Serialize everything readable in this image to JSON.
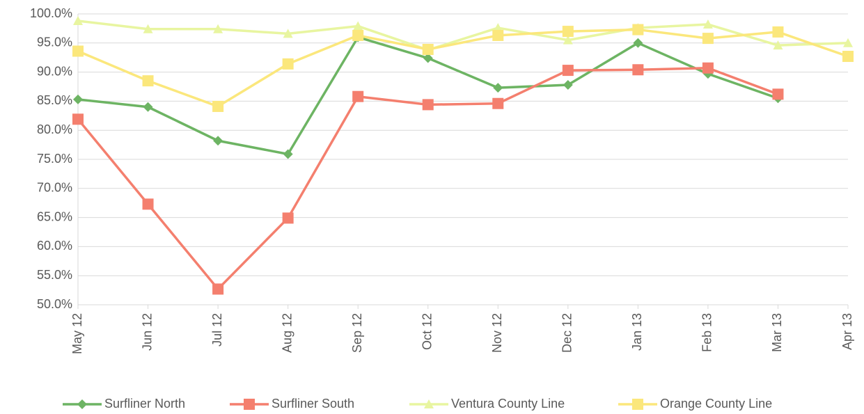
{
  "chart_data": {
    "type": "line",
    "categories": [
      "May 12",
      "Jun 12",
      "Jul 12",
      "Aug 12",
      "Sep 12",
      "Oct 12",
      "Nov 12",
      "Dec 12",
      "Jan 13",
      "Feb 13",
      "Mar 13",
      "Apr 13"
    ],
    "series": [
      {
        "name": "Surfliner North",
        "color": "#6db463",
        "marker": "diamond",
        "values": [
          85.3,
          84.0,
          78.2,
          75.9,
          96.0,
          92.4,
          87.3,
          87.8,
          95.0,
          89.7,
          85.5,
          null
        ]
      },
      {
        "name": "Surfliner South",
        "color": "#f47f6e",
        "marker": "square",
        "values": [
          81.9,
          67.3,
          52.7,
          64.9,
          85.8,
          84.4,
          84.6,
          90.3,
          90.4,
          90.7,
          86.2,
          null
        ]
      },
      {
        "name": "Ventura County Line",
        "color": "#e8f5a0",
        "marker": "triangle",
        "values": [
          98.8,
          97.4,
          97.4,
          96.6,
          97.9,
          93.8,
          97.6,
          95.5,
          97.6,
          98.2,
          94.6,
          95.0
        ]
      },
      {
        "name": "Orange County Line",
        "color": "#fbe77c",
        "marker": "square",
        "values": [
          93.6,
          88.5,
          84.1,
          91.4,
          96.3,
          93.9,
          96.3,
          97.0,
          97.3,
          95.8,
          96.9,
          92.7
        ]
      }
    ],
    "ylim": [
      50,
      100
    ],
    "yticks": [
      {
        "value": 50,
        "label": "50.0%"
      },
      {
        "value": 55,
        "label": "55.0%"
      },
      {
        "value": 60,
        "label": "60.0%"
      },
      {
        "value": 65,
        "label": "65.0%"
      },
      {
        "value": 70,
        "label": "70.0%"
      },
      {
        "value": 75,
        "label": "75.0%"
      },
      {
        "value": 80,
        "label": "80.0%"
      },
      {
        "value": 85,
        "label": "85.0%"
      },
      {
        "value": 90,
        "label": "90.0%"
      },
      {
        "value": 95,
        "label": "95.0%"
      },
      {
        "value": 100,
        "label": "100.0%"
      }
    ],
    "grid": true,
    "legend": "bottom"
  }
}
